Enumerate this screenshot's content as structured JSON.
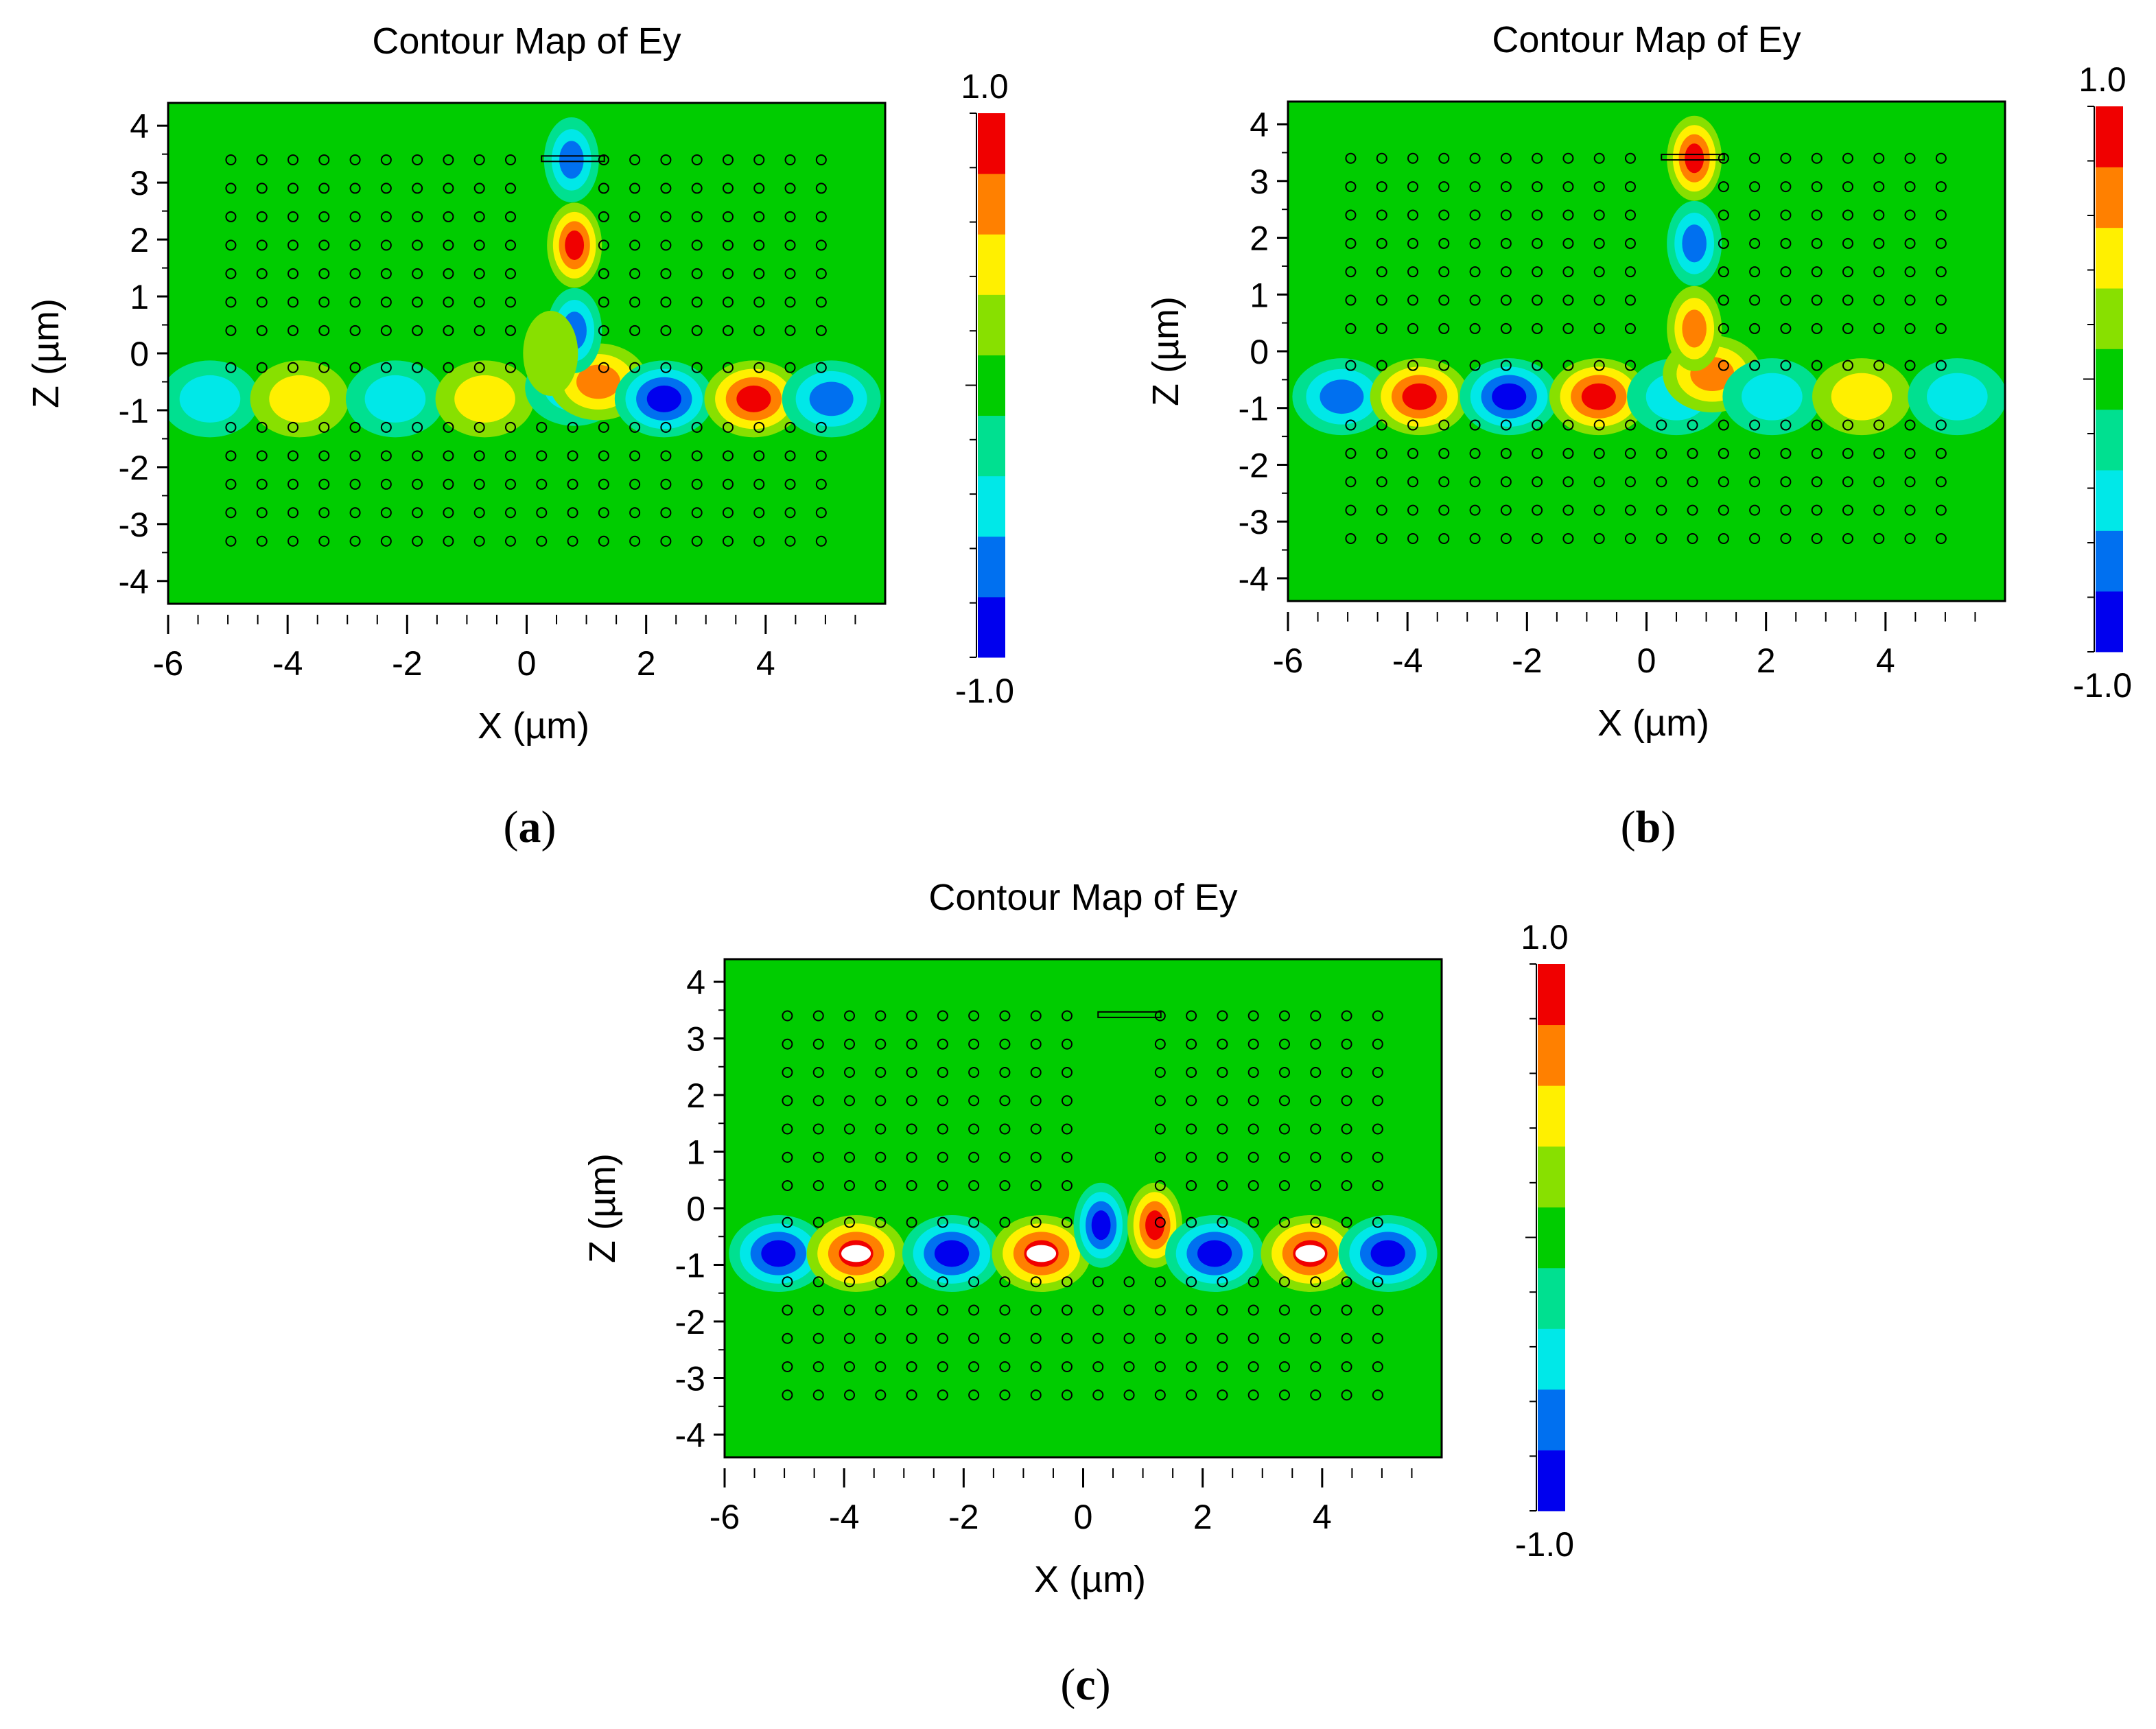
{
  "figure": {
    "type": "contour_map_panels",
    "panel_count": 3
  },
  "chart_data": [
    {
      "type": "heatmap",
      "panel": "a",
      "title": "Contour Map of Ey",
      "xlabel": "X (µm)",
      "ylabel": "Z (µm)",
      "xlim": [
        -6,
        6
      ],
      "ylim": [
        -4.4,
        4.4
      ],
      "x_ticks": [
        -6,
        -4,
        -2,
        0,
        2,
        4
      ],
      "y_ticks": [
        4,
        3,
        2,
        1,
        0,
        -1,
        -2,
        -3,
        -4
      ],
      "x_tick_labels": [
        "-6",
        "-4",
        "-2",
        "0",
        "2",
        "4"
      ],
      "y_tick_labels": [
        "4",
        "3",
        "2",
        "1",
        "0",
        "-1",
        "-2",
        "-3",
        "-4"
      ],
      "colorbar": {
        "max_label": "1.0",
        "min_label": "-1.0",
        "range": [
          -1,
          1
        ],
        "levels": 9
      },
      "field_spots": [
        {
          "x": -5.3,
          "z": -0.8,
          "value": -0.4
        },
        {
          "x": -3.8,
          "z": -0.8,
          "value": 0.35
        },
        {
          "x": -2.2,
          "z": -0.8,
          "value": -0.4
        },
        {
          "x": -0.7,
          "z": -0.8,
          "value": 0.4
        },
        {
          "x": 0.8,
          "z": -0.6,
          "value": -0.45
        },
        {
          "x": 1.2,
          "z": -0.5,
          "value": 0.6
        },
        {
          "x": 2.3,
          "z": -0.8,
          "value": -0.9
        },
        {
          "x": 3.8,
          "z": -0.8,
          "value": 0.95
        },
        {
          "x": 5.1,
          "z": -0.8,
          "value": -0.7
        },
        {
          "x": 0.75,
          "z": 3.4,
          "value": -0.75
        },
        {
          "x": 0.8,
          "z": 1.9,
          "value": 0.8
        },
        {
          "x": 0.8,
          "z": 0.4,
          "value": -0.6
        },
        {
          "x": 0.4,
          "z": 0.0,
          "value": 0.25
        }
      ]
    },
    {
      "type": "heatmap",
      "panel": "b",
      "title": "Contour Map of Ey",
      "xlabel": "X (µm)",
      "ylabel": "Z (µm)",
      "xlim": [
        -6,
        6
      ],
      "ylim": [
        -4.4,
        4.4
      ],
      "x_ticks": [
        -6,
        -4,
        -2,
        0,
        2,
        4
      ],
      "y_ticks": [
        4,
        3,
        2,
        1,
        0,
        -1,
        -2,
        -3,
        -4
      ],
      "x_tick_labels": [
        "-6",
        "-4",
        "-2",
        "0",
        "2",
        "4"
      ],
      "y_tick_labels": [
        "4",
        "3",
        "2",
        "1",
        "0",
        "-1",
        "-2",
        "-3",
        "-4"
      ],
      "colorbar": {
        "max_label": "1.0",
        "min_label": "-1.0",
        "range": [
          -1,
          1
        ],
        "levels": 9
      },
      "field_spots": [
        {
          "x": -5.1,
          "z": -0.8,
          "value": -0.7
        },
        {
          "x": -3.8,
          "z": -0.8,
          "value": 0.9
        },
        {
          "x": -2.3,
          "z": -0.8,
          "value": -0.85
        },
        {
          "x": -0.8,
          "z": -0.8,
          "value": 0.9
        },
        {
          "x": 0.5,
          "z": -0.8,
          "value": -0.45
        },
        {
          "x": 1.1,
          "z": -0.4,
          "value": 0.7
        },
        {
          "x": 2.1,
          "z": -0.8,
          "value": -0.35
        },
        {
          "x": 3.6,
          "z": -0.8,
          "value": 0.4
        },
        {
          "x": 5.2,
          "z": -0.8,
          "value": -0.4
        },
        {
          "x": 0.8,
          "z": 3.4,
          "value": 0.8
        },
        {
          "x": 0.8,
          "z": 1.9,
          "value": -0.7
        },
        {
          "x": 0.8,
          "z": 0.4,
          "value": 0.75
        }
      ]
    },
    {
      "type": "heatmap",
      "panel": "c",
      "title": "Contour Map of Ey",
      "xlabel": "X (µm)",
      "ylabel": "Z (µm)",
      "xlim": [
        -6,
        6
      ],
      "ylim": [
        -4.4,
        4.4
      ],
      "x_ticks": [
        -6,
        -4,
        -2,
        0,
        2,
        4
      ],
      "y_ticks": [
        4,
        3,
        2,
        1,
        0,
        -1,
        -2,
        -3,
        -4
      ],
      "x_tick_labels": [
        "-6",
        "-4",
        "-2",
        "0",
        "2",
        "4"
      ],
      "y_tick_labels": [
        "4",
        "3",
        "2",
        "1",
        "0",
        "-1",
        "-2",
        "-3",
        "-4"
      ],
      "colorbar": {
        "max_label": "1.0",
        "min_label": "-1.0",
        "range": [
          -1,
          1
        ],
        "levels": 9
      },
      "field_spots": [
        {
          "x": -5.1,
          "z": -0.8,
          "value": -0.95
        },
        {
          "x": -3.8,
          "z": -0.8,
          "value": 1.0
        },
        {
          "x": -2.2,
          "z": -0.8,
          "value": -1.0
        },
        {
          "x": -0.7,
          "z": -0.8,
          "value": 1.0
        },
        {
          "x": 0.3,
          "z": -0.3,
          "value": -0.8
        },
        {
          "x": 1.2,
          "z": -0.3,
          "value": 0.9
        },
        {
          "x": 2.2,
          "z": -0.8,
          "value": -1.0
        },
        {
          "x": 3.8,
          "z": -0.8,
          "value": 1.0
        },
        {
          "x": 5.1,
          "z": -0.8,
          "value": -0.95
        }
      ]
    }
  ],
  "panel_labels": {
    "a": "a",
    "b": "b",
    "c": "c"
  },
  "colors": {
    "field_background": "#00CC00",
    "colorbar_levels": [
      "#0000EE",
      "#0070F0",
      "#00E8E8",
      "#00E090",
      "#00CC00",
      "#88E000",
      "#FFF000",
      "#FF8000",
      "#F00000"
    ],
    "white_core": "#FFFFFF"
  }
}
